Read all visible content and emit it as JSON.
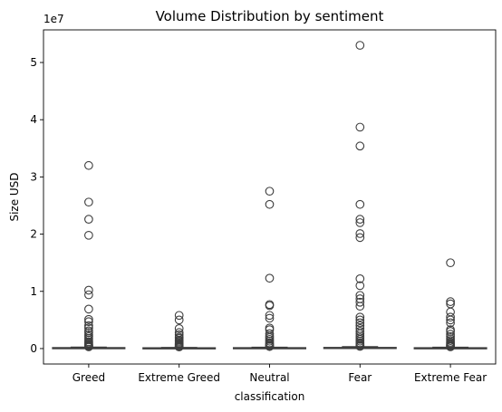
{
  "chart_data": {
    "type": "box",
    "title": "Volume Distribution by sentiment",
    "xlabel": "classification",
    "ylabel": "Size USD",
    "y_offset_label": "1e7",
    "y_scale_factor": 10000000,
    "categories": [
      "Greed",
      "Extreme Greed",
      "Neutral",
      "Fear",
      "Extreme Fear"
    ],
    "ylim": [
      -2700000,
      55700000
    ],
    "y_ticks": [
      0,
      10000000,
      20000000,
      30000000,
      40000000,
      50000000
    ],
    "y_tick_labels": [
      "0",
      "1",
      "2",
      "3",
      "4",
      "5"
    ],
    "grid": false,
    "box_color": "#1f77b4",
    "line_color": "#3d3d3d",
    "series": [
      {
        "category": "Greed",
        "q1": 0,
        "median": 50000,
        "q3": 120000,
        "whisker_low": 0,
        "whisker_high": 250000,
        "fliers": [
          32000000,
          25600000,
          22600000,
          19800000,
          10200000,
          9400000,
          6900000,
          5100000,
          4700000,
          4000000,
          3600000,
          3100000,
          2800000,
          2400000,
          2100000,
          1800000,
          1500000,
          1200000,
          1000000,
          800000,
          650000,
          500000,
          400000,
          300000
        ]
      },
      {
        "category": "Extreme Greed",
        "q1": 0,
        "median": 40000,
        "q3": 90000,
        "whisker_low": 0,
        "whisker_high": 200000,
        "fliers": [
          5800000,
          5000000,
          3500000,
          2800000,
          2400000,
          2000000,
          1800000,
          1500000,
          1300000,
          1100000,
          900000,
          750000,
          600000,
          450000,
          350000,
          280000
        ]
      },
      {
        "category": "Neutral",
        "q1": 0,
        "median": 45000,
        "q3": 110000,
        "whisker_low": 0,
        "whisker_high": 240000,
        "fliers": [
          27500000,
          25200000,
          12300000,
          7700000,
          7500000,
          5800000,
          5300000,
          3600000,
          3300000,
          2600000,
          2200000,
          1900000,
          1600000,
          1300000,
          1000000,
          800000,
          600000,
          450000,
          350000
        ]
      },
      {
        "category": "Fear",
        "q1": 0,
        "median": 60000,
        "q3": 150000,
        "whisker_low": 0,
        "whisker_high": 330000,
        "fliers": [
          53000000,
          38700000,
          35400000,
          25200000,
          22600000,
          22000000,
          20100000,
          19400000,
          12200000,
          11000000,
          9300000,
          8700000,
          8100000,
          7400000,
          5500000,
          5000000,
          4500000,
          4000000,
          3500000,
          3000000,
          2600000,
          2200000,
          1900000,
          1600000,
          1300000,
          1000000,
          800000,
          600000,
          450000,
          380000
        ]
      },
      {
        "category": "Extreme Fear",
        "q1": 0,
        "median": 45000,
        "q3": 100000,
        "whisker_low": 0,
        "whisker_high": 230000,
        "fliers": [
          15000000,
          8200000,
          7800000,
          6400000,
          5500000,
          5000000,
          4500000,
          3300000,
          3000000,
          2500000,
          2100000,
          1700000,
          1400000,
          1100000,
          900000,
          700000,
          550000,
          400000,
          300000
        ]
      }
    ]
  }
}
